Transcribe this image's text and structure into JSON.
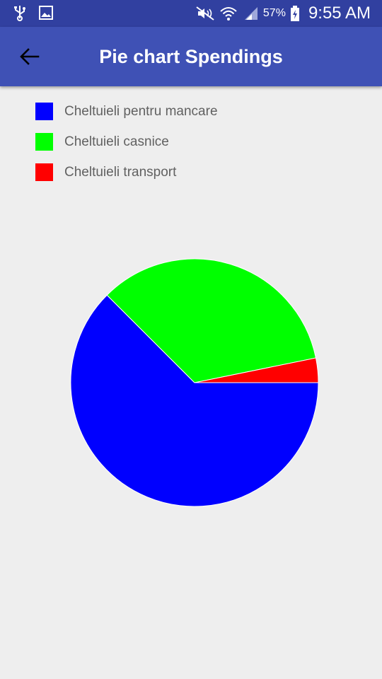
{
  "status_bar": {
    "battery_percent": "57%",
    "time": "9:55 AM",
    "icons": [
      "usb-icon",
      "gallery-icon",
      "mute-icon",
      "wifi-icon",
      "signal-icon",
      "battery-charging-icon"
    ]
  },
  "app_bar": {
    "title": "Pie chart Spendings",
    "back_icon": "arrow-back-icon"
  },
  "colors": {
    "app_bar": "#3f51b5",
    "status_bar": "#3140a0",
    "background": "#eeeeee"
  },
  "chart_data": {
    "type": "pie",
    "legend_placement": "top-left",
    "start_angle_deg": 0,
    "direction": "clockwise",
    "slices": [
      {
        "label": "Cheltuieli pentru mancare",
        "value": 62.5,
        "color": "#0000ff"
      },
      {
        "label": "Cheltuieli casnice",
        "value": 34.3,
        "color": "#00ff00"
      },
      {
        "label": "Cheltuieli transport",
        "value": 3.2,
        "color": "#ff0000"
      }
    ]
  }
}
